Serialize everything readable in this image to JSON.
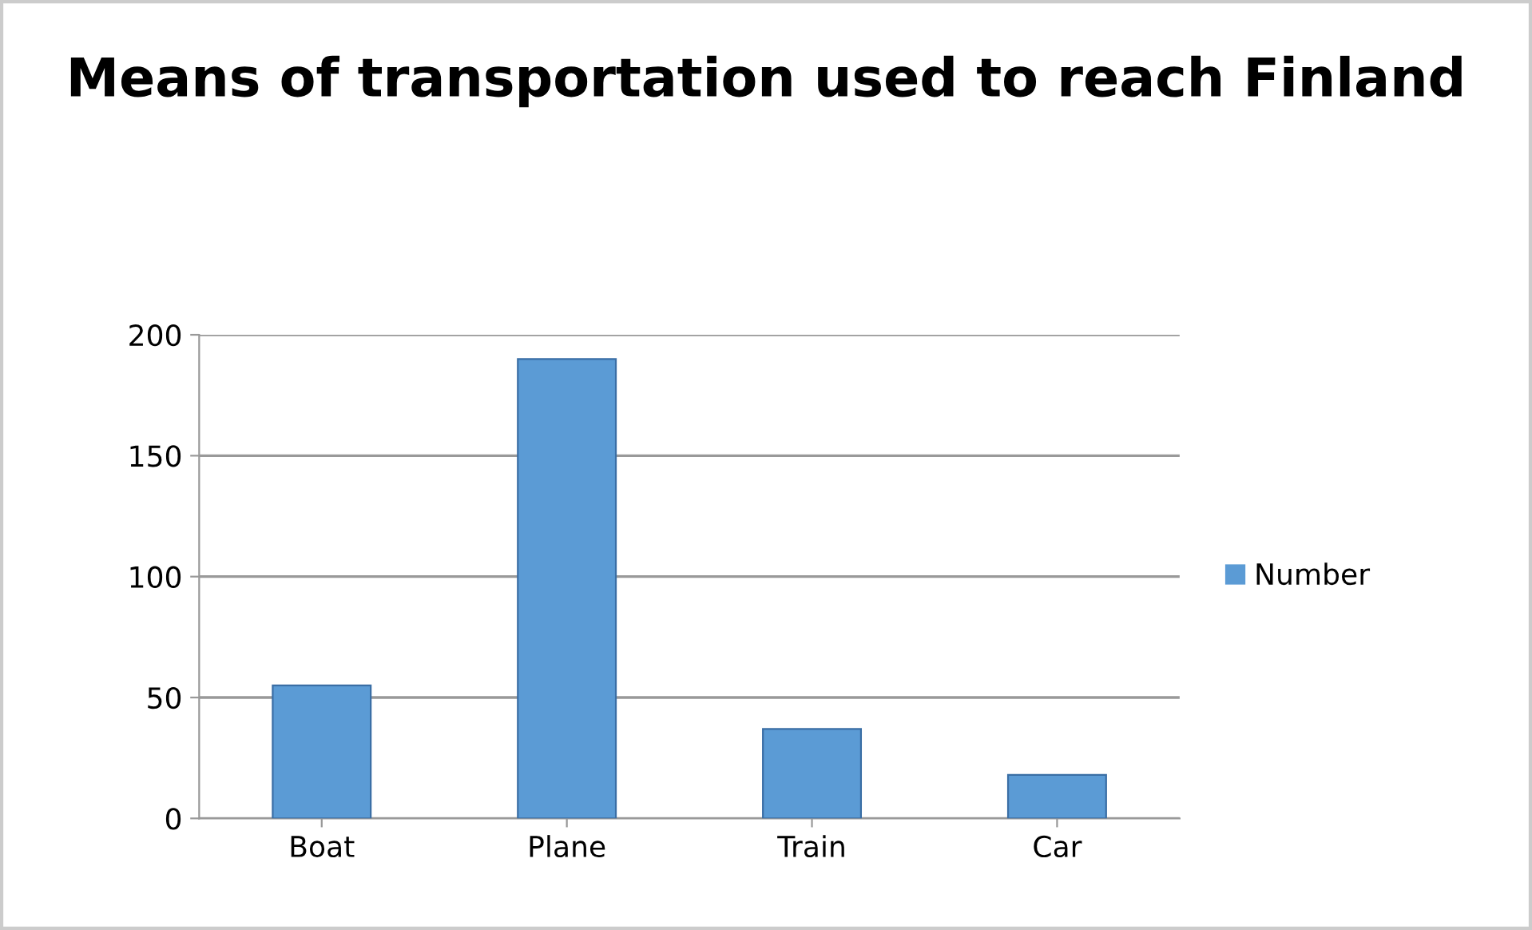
{
  "chart_data": {
    "type": "bar",
    "title": "Means of transportation used to reach Finland",
    "categories": [
      "Boat",
      "Plane",
      "Train",
      "Car"
    ],
    "series": [
      {
        "name": "Number",
        "color": "#5b9bd5",
        "values": [
          55,
          190,
          37,
          18
        ]
      }
    ],
    "ylim": [
      0,
      200
    ],
    "yticks": [
      0,
      50,
      100,
      150,
      200
    ],
    "grid": "y",
    "legend": "right"
  }
}
